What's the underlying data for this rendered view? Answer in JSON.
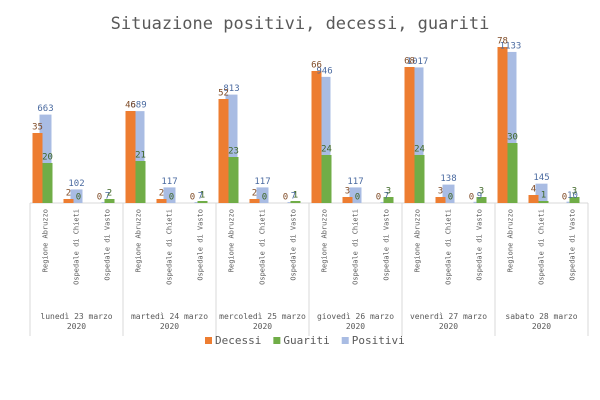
{
  "chart_data": {
    "type": "bar",
    "title": "Situazione positivi, decessi, guariti",
    "groups": [
      "lunedì 23 marzo 2020",
      "martedì 24 marzo 2020",
      "mercoledì 25 marzo 2020",
      "giovedì 26 marzo 2020",
      "venerdì 27 marzo 2020",
      "sabato 28 marzo 2020"
    ],
    "categories": [
      "Regione Abruzzo",
      "Ospedale di Chieti",
      "Ospedale di Vasto",
      "Regione Abruzzo",
      "Ospedale di Chieti",
      "Ospedale di Vasto",
      "Regione Abruzzo",
      "Ospedale di Chieti",
      "Ospedale di Vasto",
      "Regione Abruzzo",
      "Ospedale di Chieti",
      "Ospedale di Vasto",
      "Regione Abruzzo",
      "Ospedale di Chieti",
      "Ospedale di Vasto",
      "Regione Abruzzo",
      "Ospedale di Chieti",
      "Ospedale di Vasto"
    ],
    "series": [
      {
        "name": "Positivi",
        "color": "#a9bce3",
        "label_color": "#4a6aa0",
        "values": [
          663,
          102,
          7,
          689,
          117,
          7,
          813,
          117,
          7,
          946,
          117,
          7,
          1017,
          138,
          9,
          1133,
          145,
          10
        ]
      },
      {
        "name": "Decessi",
        "color": "#ed7d31",
        "label_color": "#7f4a25",
        "axis": "y2",
        "values": [
          35,
          2,
          0,
          46,
          2,
          0,
          52,
          2,
          0,
          66,
          3,
          0,
          68,
          3,
          0,
          78,
          4,
          0
        ]
      },
      {
        "name": "Guariti",
        "color": "#70ad47",
        "label_color": "#3d6626",
        "axis": "y2",
        "values": [
          20,
          0,
          2,
          21,
          0,
          1,
          23,
          0,
          1,
          24,
          0,
          3,
          24,
          0,
          3,
          30,
          1,
          3
        ]
      }
    ],
    "legend_order": [
      1,
      2,
      0
    ],
    "ylim": [
      0,
      1200
    ],
    "y2lim": [
      0,
      80
    ]
  }
}
